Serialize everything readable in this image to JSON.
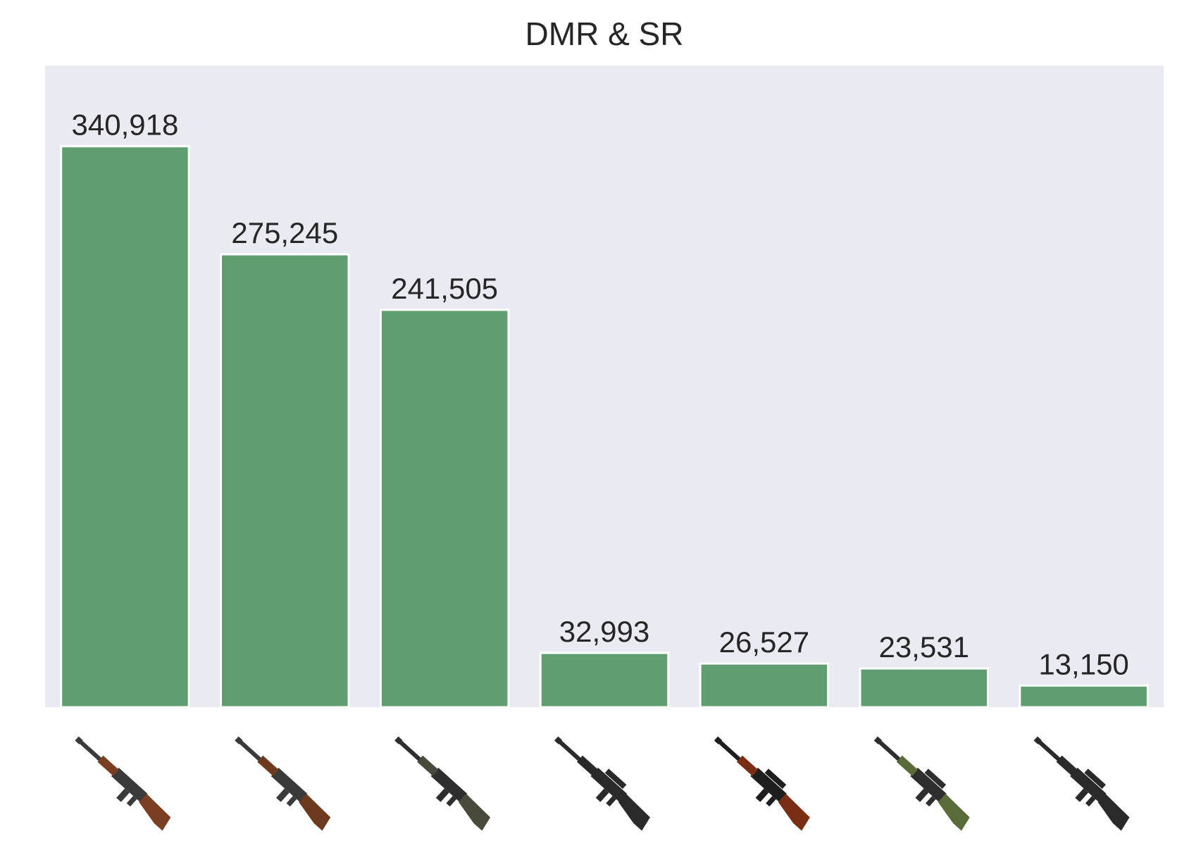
{
  "chart_data": {
    "type": "bar",
    "title": "DMR & SR",
    "xlabel": "",
    "ylabel": "",
    "categories": [
      "",
      "",
      "",
      "",
      "",
      "",
      ""
    ],
    "category_icons": [
      "mini14-rifle-icon",
      "kar98k-rifle-icon",
      "sks-rifle-icon",
      "m24-rifle-icon",
      "vss-rifle-icon",
      "awm-rifle-icon",
      "mk14-rifle-icon"
    ],
    "values": [
      340918,
      275245,
      241505,
      32993,
      26527,
      23531,
      13150
    ],
    "value_labels": [
      "340,918",
      "275,245",
      "241,505",
      "32,993",
      "26,527",
      "23,531",
      "13,150"
    ],
    "ylim": [
      0,
      390000
    ],
    "grid": false,
    "legend": "none",
    "colors": {
      "bar": "#5f9e6e",
      "bar_edge": "#ffffff",
      "plot_background": "#eaeaf2",
      "text": "#262626"
    },
    "weapon_colors": [
      {
        "body": "#3a3a3a",
        "wood": "#7a3e22"
      },
      {
        "body": "#3a3a3a",
        "wood": "#6b3a1f"
      },
      {
        "body": "#2e2e2e",
        "wood": "#4a4a3a"
      },
      {
        "body": "#2a2a2a",
        "wood": "#2a2a2a"
      },
      {
        "body": "#1e1e1e",
        "wood": "#7a2e14"
      },
      {
        "body": "#2e2e2e",
        "wood": "#5a6b3a"
      },
      {
        "body": "#2a2a2a",
        "wood": "#2a2a2a"
      }
    ]
  }
}
